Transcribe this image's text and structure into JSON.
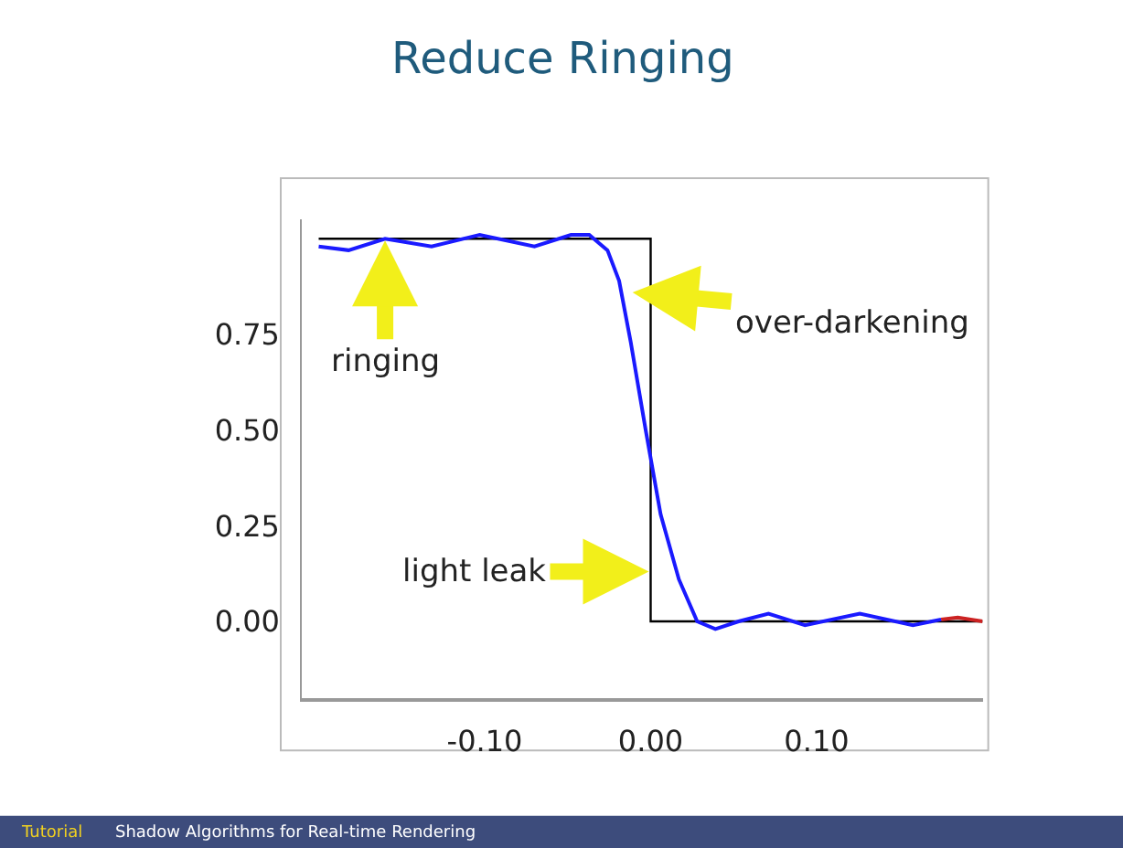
{
  "chart_data": {
    "type": "line",
    "title": "Reduce Ringing",
    "xlim": [
      -0.21,
      0.2
    ],
    "xticks": [
      {
        "value": -0.1,
        "label": "-0.10"
      },
      {
        "value": 0,
        "label": "0.00"
      },
      {
        "value": 0.1,
        "label": "0.10"
      }
    ],
    "ylim": [
      -0.2,
      1.05
    ],
    "yticks": [
      {
        "value": 0,
        "label": "0.00"
      },
      0.25,
      {
        "value": 0.5,
        "label": "0.50"
      },
      0.75
    ],
    "marker": "none",
    "line_style": "solid",
    "series": [
      {
        "color": "#000000",
        "x": [
          -0.2,
          0.0,
          0.0,
          0.2
        ],
        "values": [
          1.0,
          1.0,
          0.0,
          0.0
        ]
      },
      {
        "color": "#cc2222",
        "x": [
          0.175,
          0.185,
          0.2
        ],
        "values": [
          0.005,
          0.01,
          0.0
        ]
      },
      {
        "color": "#1a1aff",
        "x": [
          -0.2,
          -0.182,
          -0.16,
          -0.132,
          -0.103,
          -0.07,
          -0.048,
          -0.037,
          -0.026,
          -0.019,
          -0.012,
          -0.003,
          0.006,
          0.017,
          0.028,
          0.039,
          0.053,
          0.071,
          0.093,
          0.126,
          0.158,
          0.175
        ],
        "values": [
          0.98,
          0.97,
          1.0,
          0.98,
          1.01,
          0.98,
          1.01,
          1.01,
          0.97,
          0.89,
          0.73,
          0.5,
          0.28,
          0.11,
          0.0,
          -0.02,
          0.0,
          0.02,
          -0.01,
          0.02,
          -0.01,
          0.005
        ]
      }
    ],
    "annotations": [
      {
        "text": "ringing",
        "x": -0.16,
        "y": 1.0
      },
      {
        "text": "over-darkening",
        "x": -0.012,
        "y": 0.86
      },
      {
        "text": "light leak",
        "x": 0.0,
        "y": 0.13
      },
      "Tutorial",
      "Shadow Algorithms for Real-time Rendering"
    ]
  }
}
